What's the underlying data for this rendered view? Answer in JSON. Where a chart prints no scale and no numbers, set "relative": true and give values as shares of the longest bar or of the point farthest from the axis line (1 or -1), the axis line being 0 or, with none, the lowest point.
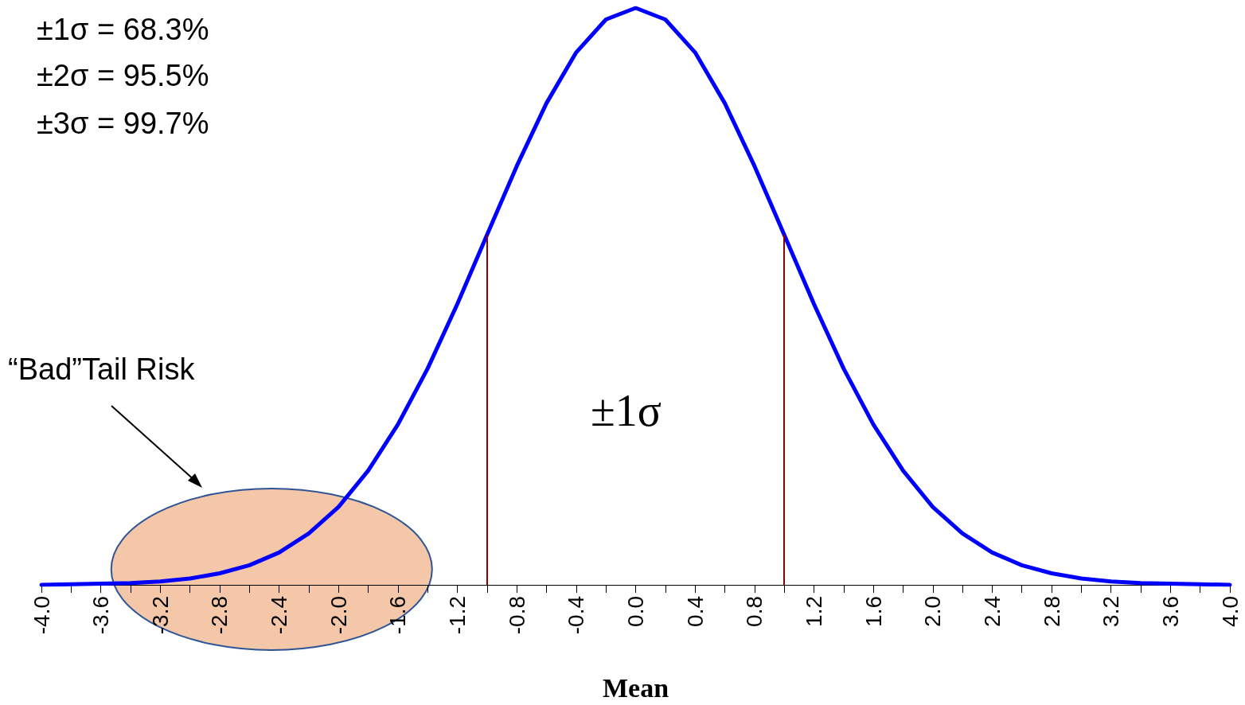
{
  "chart_data": {
    "type": "line",
    "relative": true,
    "xlabel": "Mean",
    "annotations": [
      "±1σ = 68.3%",
      "±2σ = 95.5%",
      "±3σ = 99.7%",
      "±1σ",
      "“Bad”Tail Risk"
    ],
    "x": [
      -4,
      -3.8,
      -3.6,
      -3.4,
      -3.2,
      -3,
      -2.8,
      -2.6,
      -2.4,
      -2.2,
      -2,
      -1.8,
      -1.6,
      -1.4,
      -1.2,
      -1,
      -0.8,
      -0.6,
      -0.4,
      -0.2,
      0,
      0.2,
      0.4,
      0.6,
      0.8,
      1,
      1.2,
      1.4,
      1.6,
      1.8,
      2,
      2.2,
      2.4,
      2.6,
      2.8,
      3,
      3.2,
      3.4,
      3.6,
      3.8,
      4
    ],
    "series": [
      {
        "color": "#0000ff",
        "values": [
          0,
          0.001,
          0.002,
          0.003,
          0.006,
          0.011,
          0.02,
          0.034,
          0.056,
          0.089,
          0.135,
          0.198,
          0.278,
          0.375,
          0.487,
          0.607,
          0.726,
          0.835,
          0.923,
          0.98,
          1,
          0.98,
          0.923,
          0.835,
          0.726,
          0.607,
          0.487,
          0.375,
          0.278,
          0.198,
          0.135,
          0.089,
          0.056,
          0.034,
          0.02,
          0.011,
          0.006,
          0.003,
          0.002,
          0.001,
          0
        ]
      }
    ],
    "xlim": [
      -4,
      4
    ],
    "xticks": [
      {
        "value": -4,
        "label": "-4.0"
      },
      {
        "value": -3.8,
        "label": null
      },
      {
        "value": -3.6,
        "label": "-3.6"
      },
      {
        "value": -3.4,
        "label": null
      },
      {
        "value": -3.2,
        "label": "-3.2"
      },
      {
        "value": -3,
        "label": null
      },
      {
        "value": -2.8,
        "label": "-2.8"
      },
      {
        "value": -2.6,
        "label": null
      },
      {
        "value": -2.4,
        "label": "-2.4"
      },
      {
        "value": -2.2,
        "label": null
      },
      {
        "value": -2,
        "label": "-2.0"
      },
      {
        "value": -1.8,
        "label": null
      },
      {
        "value": -1.6,
        "label": "-1.6"
      },
      {
        "value": -1.4,
        "label": null
      },
      {
        "value": -1.2,
        "label": "-1.2"
      },
      {
        "value": -1,
        "label": null
      },
      {
        "value": -0.8,
        "label": "-0.8"
      },
      {
        "value": -0.6,
        "label": null
      },
      {
        "value": -0.4,
        "label": "-0.4"
      },
      {
        "value": -0.2,
        "label": null
      },
      {
        "value": 0,
        "label": "0.0"
      },
      {
        "value": 0.2,
        "label": null
      },
      {
        "value": 0.4,
        "label": "0.4"
      },
      {
        "value": 0.6,
        "label": null
      },
      {
        "value": 0.8,
        "label": "0.8"
      },
      {
        "value": 1,
        "label": null
      },
      {
        "value": 1.2,
        "label": "1.2"
      },
      {
        "value": 1.4,
        "label": null
      },
      {
        "value": 1.6,
        "label": "1.6"
      },
      {
        "value": 1.8,
        "label": null
      },
      {
        "value": 2,
        "label": "2.0"
      },
      {
        "value": 2.2,
        "label": null
      },
      {
        "value": 2.4,
        "label": "2.4"
      },
      {
        "value": 2.6,
        "label": null
      },
      {
        "value": 2.8,
        "label": "2.8"
      },
      {
        "value": 3,
        "label": null
      },
      {
        "value": 3.2,
        "label": "3.2"
      },
      {
        "value": 3.4,
        "label": null
      },
      {
        "value": 3.6,
        "label": "3.6"
      },
      {
        "value": 3.8,
        "label": null
      },
      {
        "value": 4,
        "label": "4.0"
      }
    ],
    "ref_lines": [
      {
        "axis": "x",
        "value": -1,
        "color": "#8b0000"
      },
      {
        "axis": "x",
        "value": 1,
        "color": "#8b0000"
      }
    ],
    "marker": "none",
    "line_style": "solid",
    "grid": false
  }
}
